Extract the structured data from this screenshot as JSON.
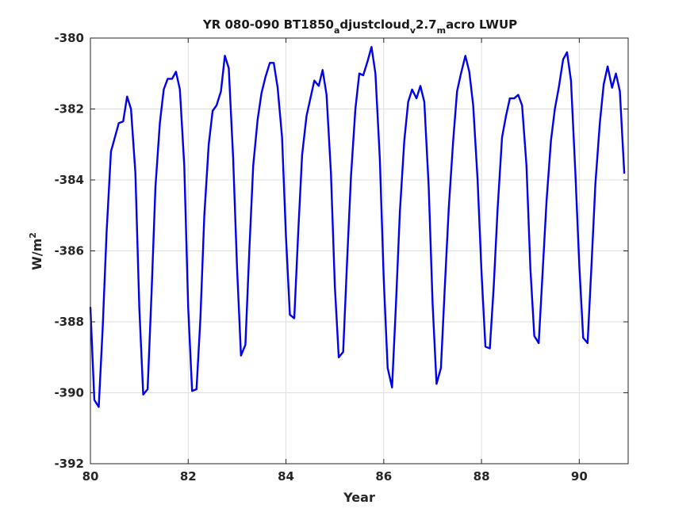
{
  "chart_data": {
    "type": "line",
    "title": "YR 080-090 BT1850_adjustcloud_v2.7_macro LWUP",
    "title_parts": {
      "t1": "YR 080-090 BT1850",
      "s1": "a",
      "t2": "djustcloud",
      "s2": "v",
      "t3": "2.7",
      "s3": "m",
      "t4": "acro LWUP"
    },
    "xlabel": "Year",
    "ylabel_parts": {
      "base": "W/m",
      "sup": "2"
    },
    "xlim": [
      80,
      91
    ],
    "ylim": [
      -392,
      -380
    ],
    "xticks": [
      80,
      82,
      84,
      86,
      88,
      90
    ],
    "yticks": [
      -392,
      -390,
      -388,
      -386,
      -384,
      -382,
      -380
    ],
    "grid": true,
    "series": [
      {
        "color": "#0000ee",
        "x": [
          80.0,
          80.08,
          80.17,
          80.25,
          80.33,
          80.42,
          80.5,
          80.58,
          80.67,
          80.75,
          80.83,
          80.92,
          81.0,
          81.08,
          81.17,
          81.25,
          81.33,
          81.42,
          81.5,
          81.58,
          81.67,
          81.75,
          81.83,
          81.92,
          82.0,
          82.08,
          82.17,
          82.25,
          82.33,
          82.42,
          82.5,
          82.58,
          82.67,
          82.75,
          82.83,
          82.92,
          83.0,
          83.08,
          83.17,
          83.25,
          83.33,
          83.42,
          83.5,
          83.58,
          83.67,
          83.75,
          83.83,
          83.92,
          84.0,
          84.08,
          84.17,
          84.25,
          84.33,
          84.42,
          84.5,
          84.58,
          84.67,
          84.75,
          84.83,
          84.92,
          85.0,
          85.08,
          85.17,
          85.25,
          85.33,
          85.42,
          85.5,
          85.58,
          85.67,
          85.75,
          85.83,
          85.92,
          86.0,
          86.08,
          86.17,
          86.25,
          86.33,
          86.42,
          86.5,
          86.58,
          86.67,
          86.75,
          86.83,
          86.92,
          87.0,
          87.08,
          87.17,
          87.25,
          87.33,
          87.42,
          87.5,
          87.58,
          87.67,
          87.75,
          87.83,
          87.92,
          88.0,
          88.08,
          88.17,
          88.25,
          88.33,
          88.42,
          88.5,
          88.58,
          88.67,
          88.75,
          88.83,
          88.92,
          89.0,
          89.08,
          89.17,
          89.25,
          89.33,
          89.42,
          89.5,
          89.58,
          89.67,
          89.75,
          89.83,
          89.92,
          90.0,
          90.08,
          90.17,
          90.25,
          90.33,
          90.42,
          90.5,
          90.58,
          90.67,
          90.75,
          90.83,
          90.92
        ],
        "y": [
          -387.6,
          -390.2,
          -390.4,
          -388.2,
          -385.5,
          -383.2,
          -382.8,
          -382.4,
          -382.35,
          -381.65,
          -382.0,
          -383.8,
          -387.6,
          -390.05,
          -389.9,
          -387.2,
          -384.2,
          -382.4,
          -381.45,
          -381.15,
          -381.15,
          -380.95,
          -381.45,
          -383.6,
          -387.6,
          -389.95,
          -389.9,
          -387.9,
          -385.0,
          -383.0,
          -382.05,
          -381.9,
          -381.5,
          -380.5,
          -380.85,
          -383.4,
          -386.5,
          -388.95,
          -388.65,
          -386.0,
          -383.6,
          -382.3,
          -381.55,
          -381.1,
          -380.7,
          -380.7,
          -381.4,
          -382.8,
          -385.6,
          -387.8,
          -387.9,
          -385.5,
          -383.3,
          -382.2,
          -381.7,
          -381.2,
          -381.35,
          -380.9,
          -381.6,
          -383.8,
          -387.0,
          -389.0,
          -388.85,
          -386.3,
          -383.9,
          -382.0,
          -381.0,
          -381.05,
          -380.65,
          -380.25,
          -381.0,
          -383.4,
          -386.8,
          -389.3,
          -389.85,
          -387.5,
          -384.9,
          -382.9,
          -381.8,
          -381.45,
          -381.7,
          -381.35,
          -381.8,
          -384.2,
          -387.5,
          -389.75,
          -389.3,
          -387.0,
          -384.8,
          -382.9,
          -381.5,
          -381.0,
          -380.5,
          -380.95,
          -381.9,
          -384.0,
          -386.6,
          -388.7,
          -388.75,
          -387.0,
          -384.8,
          -382.8,
          -382.2,
          -381.7,
          -381.7,
          -381.6,
          -381.9,
          -383.6,
          -386.5,
          -388.4,
          -388.6,
          -386.6,
          -384.6,
          -382.9,
          -382.0,
          -381.4,
          -380.6,
          -380.4,
          -381.2,
          -383.8,
          -386.4,
          -388.45,
          -388.6,
          -386.4,
          -384.1,
          -382.4,
          -381.3,
          -380.8,
          -381.4,
          -381.0,
          -381.5,
          -383.8
        ]
      }
    ]
  }
}
